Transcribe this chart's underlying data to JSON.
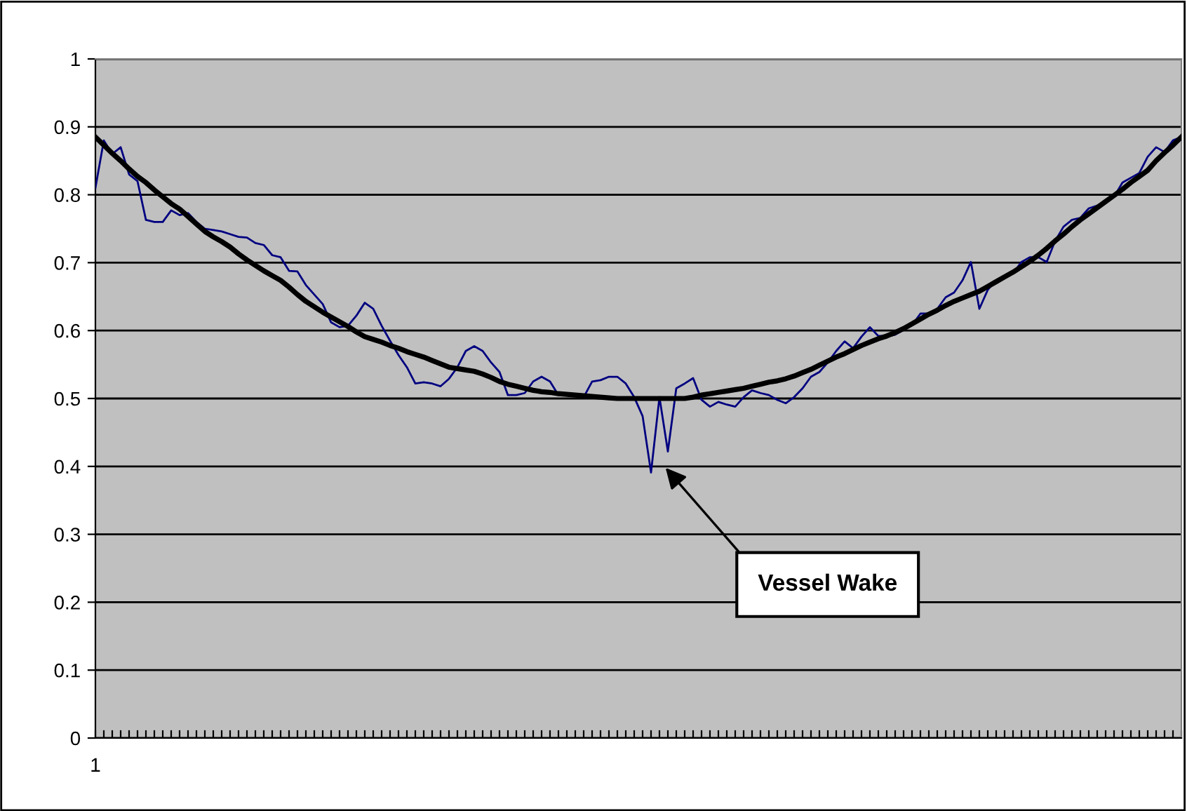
{
  "chart_data": {
    "type": "line",
    "categories": [
      "1",
      null,
      null,
      null,
      null,
      null,
      null,
      null,
      null,
      null,
      null,
      null,
      null,
      null,
      null,
      null,
      null,
      null,
      null,
      null,
      null,
      null,
      null,
      null,
      null,
      null,
      null,
      null,
      null,
      null,
      null,
      null,
      null,
      null,
      null,
      null,
      null,
      null,
      null,
      null,
      null,
      null,
      null,
      null,
      null,
      null,
      null,
      null,
      null,
      null,
      null,
      null,
      null,
      null,
      null,
      null,
      null,
      null,
      null,
      null,
      null,
      null,
      null,
      null,
      null,
      null,
      null,
      null,
      null,
      null,
      null,
      null,
      null,
      null,
      null,
      null,
      null,
      null,
      null,
      null,
      null,
      null,
      null,
      null,
      null,
      null,
      null,
      null,
      null,
      null,
      null,
      null,
      null,
      null,
      null,
      null,
      null,
      null,
      null,
      null,
      null,
      null,
      null,
      null,
      null,
      null,
      null,
      null,
      null,
      null,
      null,
      null,
      null,
      null,
      null,
      null,
      null,
      null,
      null,
      null,
      null,
      null,
      null,
      null,
      null,
      null,
      null,
      null,
      null,
      null
    ],
    "series": [
      {
        "color": "#000080",
        "values": [
          0.81,
          0.88,
          0.86,
          0.87,
          0.83,
          0.82,
          0.763,
          0.76,
          0.76,
          0.777,
          0.77,
          0.773,
          0.76,
          0.75,
          0.748,
          0.746,
          0.742,
          0.738,
          0.737,
          0.729,
          0.726,
          0.711,
          0.708,
          0.688,
          0.687,
          0.667,
          0.653,
          0.639,
          0.612,
          0.605,
          0.607,
          0.622,
          0.641,
          0.632,
          0.607,
          0.585,
          0.564,
          0.546,
          0.522,
          0.524,
          0.522,
          0.518,
          0.529,
          0.546,
          0.57,
          0.577,
          0.57,
          0.553,
          0.539,
          0.505,
          0.505,
          0.508,
          0.525,
          0.532,
          0.525,
          0.505,
          0.505,
          0.505,
          0.502,
          0.525,
          0.527,
          0.532,
          0.532,
          0.522,
          0.502,
          0.474,
          0.391,
          0.502,
          0.422,
          0.515,
          0.522,
          0.53,
          0.498,
          0.488,
          0.495,
          0.491,
          0.488,
          0.502,
          0.512,
          0.508,
          0.505,
          0.498,
          0.493,
          0.502,
          0.515,
          0.532,
          0.539,
          0.553,
          0.57,
          0.584,
          0.574,
          0.591,
          0.605,
          0.592,
          0.592,
          0.594,
          0.601,
          0.608,
          0.625,
          0.625,
          0.632,
          0.649,
          0.656,
          0.674,
          0.701,
          0.632,
          0.66,
          0.674,
          0.68,
          0.684,
          0.701,
          0.708,
          0.708,
          0.701,
          0.732,
          0.753,
          0.763,
          0.766,
          0.78,
          0.784,
          0.791,
          0.797,
          0.818,
          0.825,
          0.832,
          0.856,
          0.87,
          0.863,
          0.88,
          0.885
        ]
      },
      {
        "color": "#000000",
        "values": [
          0.885,
          0.873,
          0.861,
          0.85,
          0.838,
          0.827,
          0.818,
          0.807,
          0.797,
          0.787,
          0.779,
          0.768,
          0.757,
          0.746,
          0.738,
          0.731,
          0.723,
          0.713,
          0.704,
          0.696,
          0.688,
          0.681,
          0.674,
          0.664,
          0.653,
          0.643,
          0.635,
          0.627,
          0.62,
          0.613,
          0.606,
          0.598,
          0.591,
          0.587,
          0.583,
          0.578,
          0.574,
          0.569,
          0.565,
          0.561,
          0.556,
          0.551,
          0.546,
          0.544,
          0.542,
          0.54,
          0.536,
          0.531,
          0.525,
          0.521,
          0.518,
          0.515,
          0.512,
          0.51,
          0.509,
          0.507,
          0.506,
          0.505,
          0.504,
          0.503,
          0.502,
          0.501,
          0.5,
          0.5,
          0.5,
          0.5,
          0.5,
          0.5,
          0.5,
          0.5,
          0.5,
          0.502,
          0.505,
          0.507,
          0.509,
          0.511,
          0.513,
          0.515,
          0.518,
          0.521,
          0.524,
          0.526,
          0.529,
          0.533,
          0.538,
          0.543,
          0.549,
          0.555,
          0.561,
          0.566,
          0.572,
          0.578,
          0.583,
          0.588,
          0.592,
          0.597,
          0.603,
          0.61,
          0.617,
          0.624,
          0.63,
          0.637,
          0.643,
          0.648,
          0.653,
          0.658,
          0.665,
          0.672,
          0.679,
          0.686,
          0.694,
          0.702,
          0.711,
          0.721,
          0.732,
          0.742,
          0.753,
          0.763,
          0.772,
          0.781,
          0.79,
          0.799,
          0.808,
          0.818,
          0.827,
          0.836,
          0.85,
          0.862,
          0.873,
          0.885
        ]
      }
    ],
    "ylim": [
      0,
      1
    ],
    "yticks": [
      0,
      0.1,
      0.2,
      0.3,
      0.4,
      0.5,
      0.6,
      0.7,
      0.8,
      0.9,
      1
    ],
    "grid": "y",
    "marker": "none",
    "line_style": "solid",
    "annotations": [
      "Vessel Wake"
    ]
  }
}
